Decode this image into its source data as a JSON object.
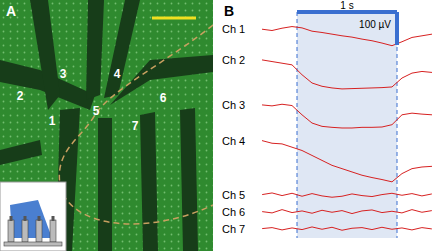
{
  "panel_a": {
    "letter": "A",
    "electrode_labels": [
      "1",
      "2",
      "3",
      "4",
      "5",
      "6",
      "7"
    ]
  },
  "chart_data": {
    "type": "line",
    "letter": "B",
    "tick_labels": false,
    "x": [
      0,
      0.1,
      0.2,
      0.3,
      0.4,
      0.5,
      0.6,
      0.7,
      0.8,
      0.9,
      1.0,
      1.1,
      1.2,
      1.3,
      1.4,
      1.5,
      1.6,
      1.7
    ],
    "xlim": [
      0,
      1.7
    ],
    "shaded": [
      0.35,
      1.35
    ],
    "scale_bar": {
      "time": 1,
      "time_label": "1 s",
      "voltage": 100,
      "voltage_label": "100 µV"
    },
    "series": [
      {
        "name": "Ch 1",
        "color": "#d62020",
        "ylim": [
          -70,
          40
        ],
        "values": [
          0,
          -4,
          3,
          8,
          4,
          -6,
          -10,
          -15,
          -20,
          -24,
          -30,
          -35,
          -42,
          -50,
          -38,
          -25,
          -20,
          -15
        ]
      },
      {
        "name": "Ch 2",
        "color": "#d62020",
        "ylim": [
          -100,
          30
        ],
        "values": [
          0,
          -5,
          -10,
          -15,
          -45,
          -70,
          -80,
          -85,
          -88,
          -87,
          -86,
          -85,
          -84,
          -82,
          -55,
          -40,
          -35,
          -38
        ]
      },
      {
        "name": "Ch 3",
        "color": "#d62020",
        "ylim": [
          -90,
          30
        ],
        "values": [
          0,
          -3,
          2,
          -2,
          -30,
          -55,
          -65,
          -68,
          -70,
          -70,
          -68,
          -68,
          -67,
          -60,
          -30,
          -25,
          -28,
          -30
        ]
      },
      {
        "name": "Ch 4",
        "color": "#d62020",
        "ylim": [
          -140,
          20
        ],
        "values": [
          0,
          -8,
          -10,
          -20,
          -30,
          -45,
          -60,
          -75,
          -85,
          -95,
          -105,
          -112,
          -118,
          -125,
          -100,
          -85,
          -80,
          -78
        ]
      },
      {
        "name": "Ch 5",
        "color": "#d62020",
        "ylim": [
          -20,
          20
        ],
        "values": [
          0,
          5,
          -3,
          4,
          -5,
          3,
          -4,
          -8,
          -5,
          2,
          -3,
          -6,
          0,
          4,
          -2,
          3,
          -4,
          2
        ]
      },
      {
        "name": "Ch 6",
        "color": "#d62020",
        "ylim": [
          -20,
          20
        ],
        "values": [
          0,
          -4,
          6,
          -3,
          2,
          -5,
          4,
          -2,
          3,
          -6,
          2,
          5,
          -3,
          1,
          -4,
          6,
          -2,
          3
        ]
      },
      {
        "name": "Ch 7",
        "color": "#d62020",
        "ylim": [
          -20,
          20
        ],
        "values": [
          0,
          3,
          -4,
          2,
          -3,
          5,
          -2,
          4,
          -5,
          1,
          3,
          -3,
          4,
          -2,
          2,
          -4,
          3,
          -1
        ]
      }
    ]
  }
}
